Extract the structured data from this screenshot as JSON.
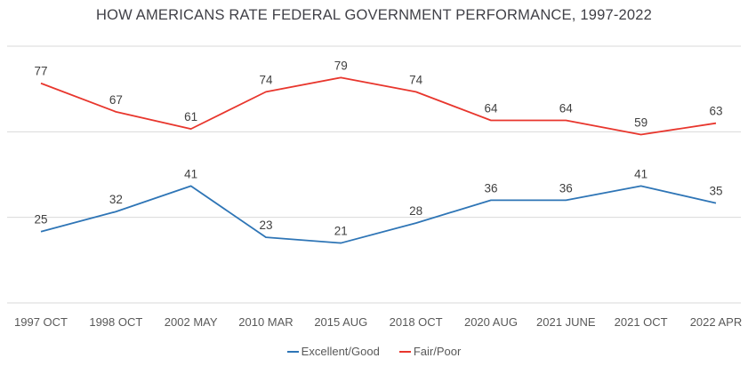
{
  "chart_data": {
    "type": "line",
    "title": "HOW AMERICANS RATE FEDERAL GOVERNMENT PERFORMANCE, 1997-2022",
    "categories": [
      "1997 OCT",
      "1998 OCT",
      "2002 MAY",
      "2010 MAR",
      "2015 AUG",
      "2018 OCT",
      "2020 AUG",
      "2021 JUNE",
      "2021 OCT",
      "2022 APR"
    ],
    "series": [
      {
        "name": "Excellent/Good",
        "color": "#2e75b6",
        "values": [
          25,
          32,
          41,
          23,
          21,
          28,
          36,
          36,
          41,
          35
        ]
      },
      {
        "name": "Fair/Poor",
        "color": "#e8362d",
        "values": [
          77,
          67,
          61,
          74,
          79,
          74,
          64,
          64,
          59,
          63
        ]
      }
    ],
    "ylim": [
      0,
      90
    ],
    "grid_step": 30,
    "grid": "horizontal-only",
    "legend_position": "bottom",
    "data_labels": true,
    "xlabel": "",
    "ylabel": ""
  },
  "colors": {
    "background": "#ffffff",
    "grid": "#d9d9d9",
    "title": "#404047",
    "axis_label": "#595959",
    "data_label": "#404040"
  }
}
